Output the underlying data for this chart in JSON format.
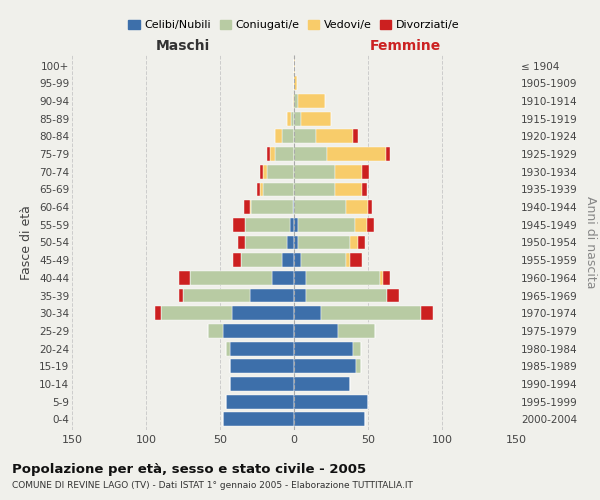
{
  "age_groups": [
    "0-4",
    "5-9",
    "10-14",
    "15-19",
    "20-24",
    "25-29",
    "30-34",
    "35-39",
    "40-44",
    "45-49",
    "50-54",
    "55-59",
    "60-64",
    "65-69",
    "70-74",
    "75-79",
    "80-84",
    "85-89",
    "90-94",
    "95-99",
    "100+"
  ],
  "birth_years": [
    "2000-2004",
    "1995-1999",
    "1990-1994",
    "1985-1989",
    "1980-1984",
    "1975-1979",
    "1970-1974",
    "1965-1969",
    "1960-1964",
    "1955-1959",
    "1950-1954",
    "1945-1949",
    "1940-1944",
    "1935-1939",
    "1930-1934",
    "1925-1929",
    "1920-1924",
    "1915-1919",
    "1910-1914",
    "1905-1909",
    "≤ 1904"
  ],
  "male": {
    "celibi": [
      48,
      46,
      43,
      43,
      43,
      48,
      42,
      30,
      15,
      8,
      5,
      3,
      1,
      0,
      0,
      0,
      0,
      0,
      0,
      0,
      0
    ],
    "coniugati": [
      0,
      0,
      0,
      0,
      3,
      10,
      48,
      45,
      55,
      28,
      28,
      30,
      28,
      21,
      18,
      13,
      8,
      2,
      0,
      0,
      0
    ],
    "vedovi": [
      0,
      0,
      0,
      0,
      0,
      0,
      0,
      0,
      0,
      0,
      0,
      0,
      1,
      2,
      3,
      3,
      5,
      3,
      1,
      0,
      0
    ],
    "divorziati": [
      0,
      0,
      0,
      0,
      0,
      0,
      4,
      3,
      8,
      5,
      5,
      8,
      4,
      2,
      2,
      2,
      0,
      0,
      0,
      0,
      0
    ]
  },
  "female": {
    "nubili": [
      48,
      50,
      38,
      42,
      40,
      30,
      18,
      8,
      8,
      5,
      3,
      3,
      0,
      0,
      0,
      0,
      0,
      0,
      0,
      0,
      0
    ],
    "coniugate": [
      0,
      0,
      0,
      3,
      5,
      25,
      68,
      55,
      50,
      30,
      35,
      38,
      35,
      28,
      28,
      22,
      15,
      5,
      3,
      0,
      0
    ],
    "vedove": [
      0,
      0,
      0,
      0,
      0,
      0,
      0,
      0,
      2,
      3,
      5,
      8,
      15,
      18,
      18,
      40,
      25,
      20,
      18,
      2,
      1
    ],
    "divorziate": [
      0,
      0,
      0,
      0,
      0,
      0,
      8,
      8,
      5,
      8,
      5,
      5,
      3,
      3,
      5,
      3,
      3,
      0,
      0,
      0,
      0
    ]
  },
  "colors": {
    "celibi": "#3d6faa",
    "coniugati": "#b8cba3",
    "vedovi": "#f8cc6a",
    "divorziati": "#cc2020"
  },
  "title": "Popolazione per età, sesso e stato civile - 2005",
  "subtitle": "COMUNE DI REVINE LAGO (TV) - Dati ISTAT 1° gennaio 2005 - Elaborazione TUTTITALIA.IT",
  "xlabel_left": "Maschi",
  "xlabel_right": "Femmine",
  "ylabel_left": "Fasce di età",
  "ylabel_right": "Anni di nascita",
  "xlim": 150,
  "background_color": "#f0f0eb",
  "legend_labels": [
    "Celibi/Nubili",
    "Coniugati/e",
    "Vedovi/e",
    "Divorziati/e"
  ]
}
